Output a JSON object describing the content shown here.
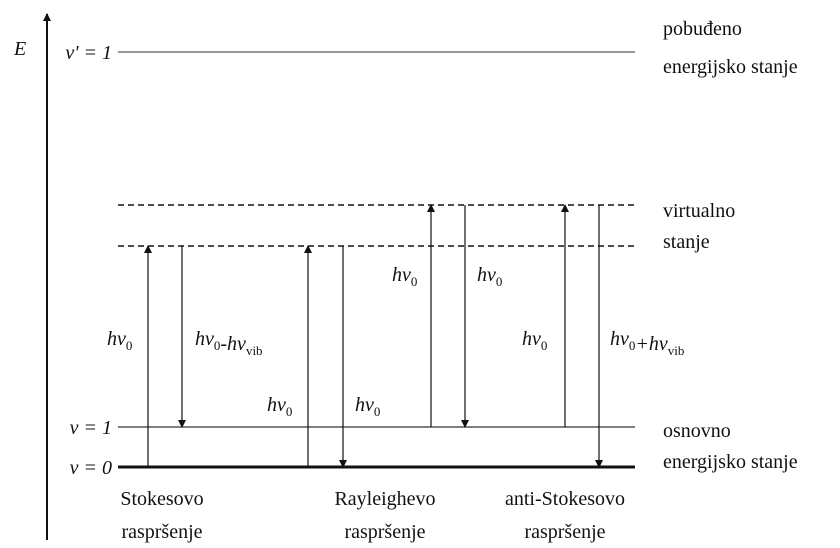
{
  "axis_label": "E",
  "levels": [
    {
      "label": "ν' = 1",
      "description": [
        "pobuđeno",
        "energijsko stanje"
      ]
    },
    {
      "label": null,
      "description": [
        "virtualno",
        "stanje"
      ]
    },
    {
      "label": "ν = 1",
      "description": [
        "osnovno",
        "energijsko stanje"
      ]
    },
    {
      "label": "ν = 0",
      "description": []
    }
  ],
  "transitions": [
    {
      "parts": [
        {
          "text": "hν",
          "sub": "0"
        }
      ]
    },
    {
      "parts": [
        {
          "text": "hν",
          "sub": "0"
        },
        {
          "text": "-hν",
          "sub": "vib"
        }
      ]
    },
    {
      "parts": [
        {
          "text": "hν",
          "sub": "0"
        }
      ]
    },
    {
      "parts": [
        {
          "text": "hν",
          "sub": "0"
        }
      ]
    },
    {
      "parts": [
        {
          "text": "hν",
          "sub": "0"
        }
      ]
    },
    {
      "parts": [
        {
          "text": "hν",
          "sub": "0"
        }
      ]
    },
    {
      "parts": [
        {
          "text": "hν",
          "sub": "0"
        }
      ]
    },
    {
      "parts": [
        {
          "text": "hν",
          "sub": "0"
        },
        {
          "text": "+hν",
          "sub": "vib"
        }
      ]
    }
  ],
  "processes": [
    [
      "Stokesovo",
      "raspršenje"
    ],
    [
      "Rayleighevo",
      "raspršenje"
    ],
    [
      "anti-Stokesovo",
      "raspršenje"
    ]
  ]
}
